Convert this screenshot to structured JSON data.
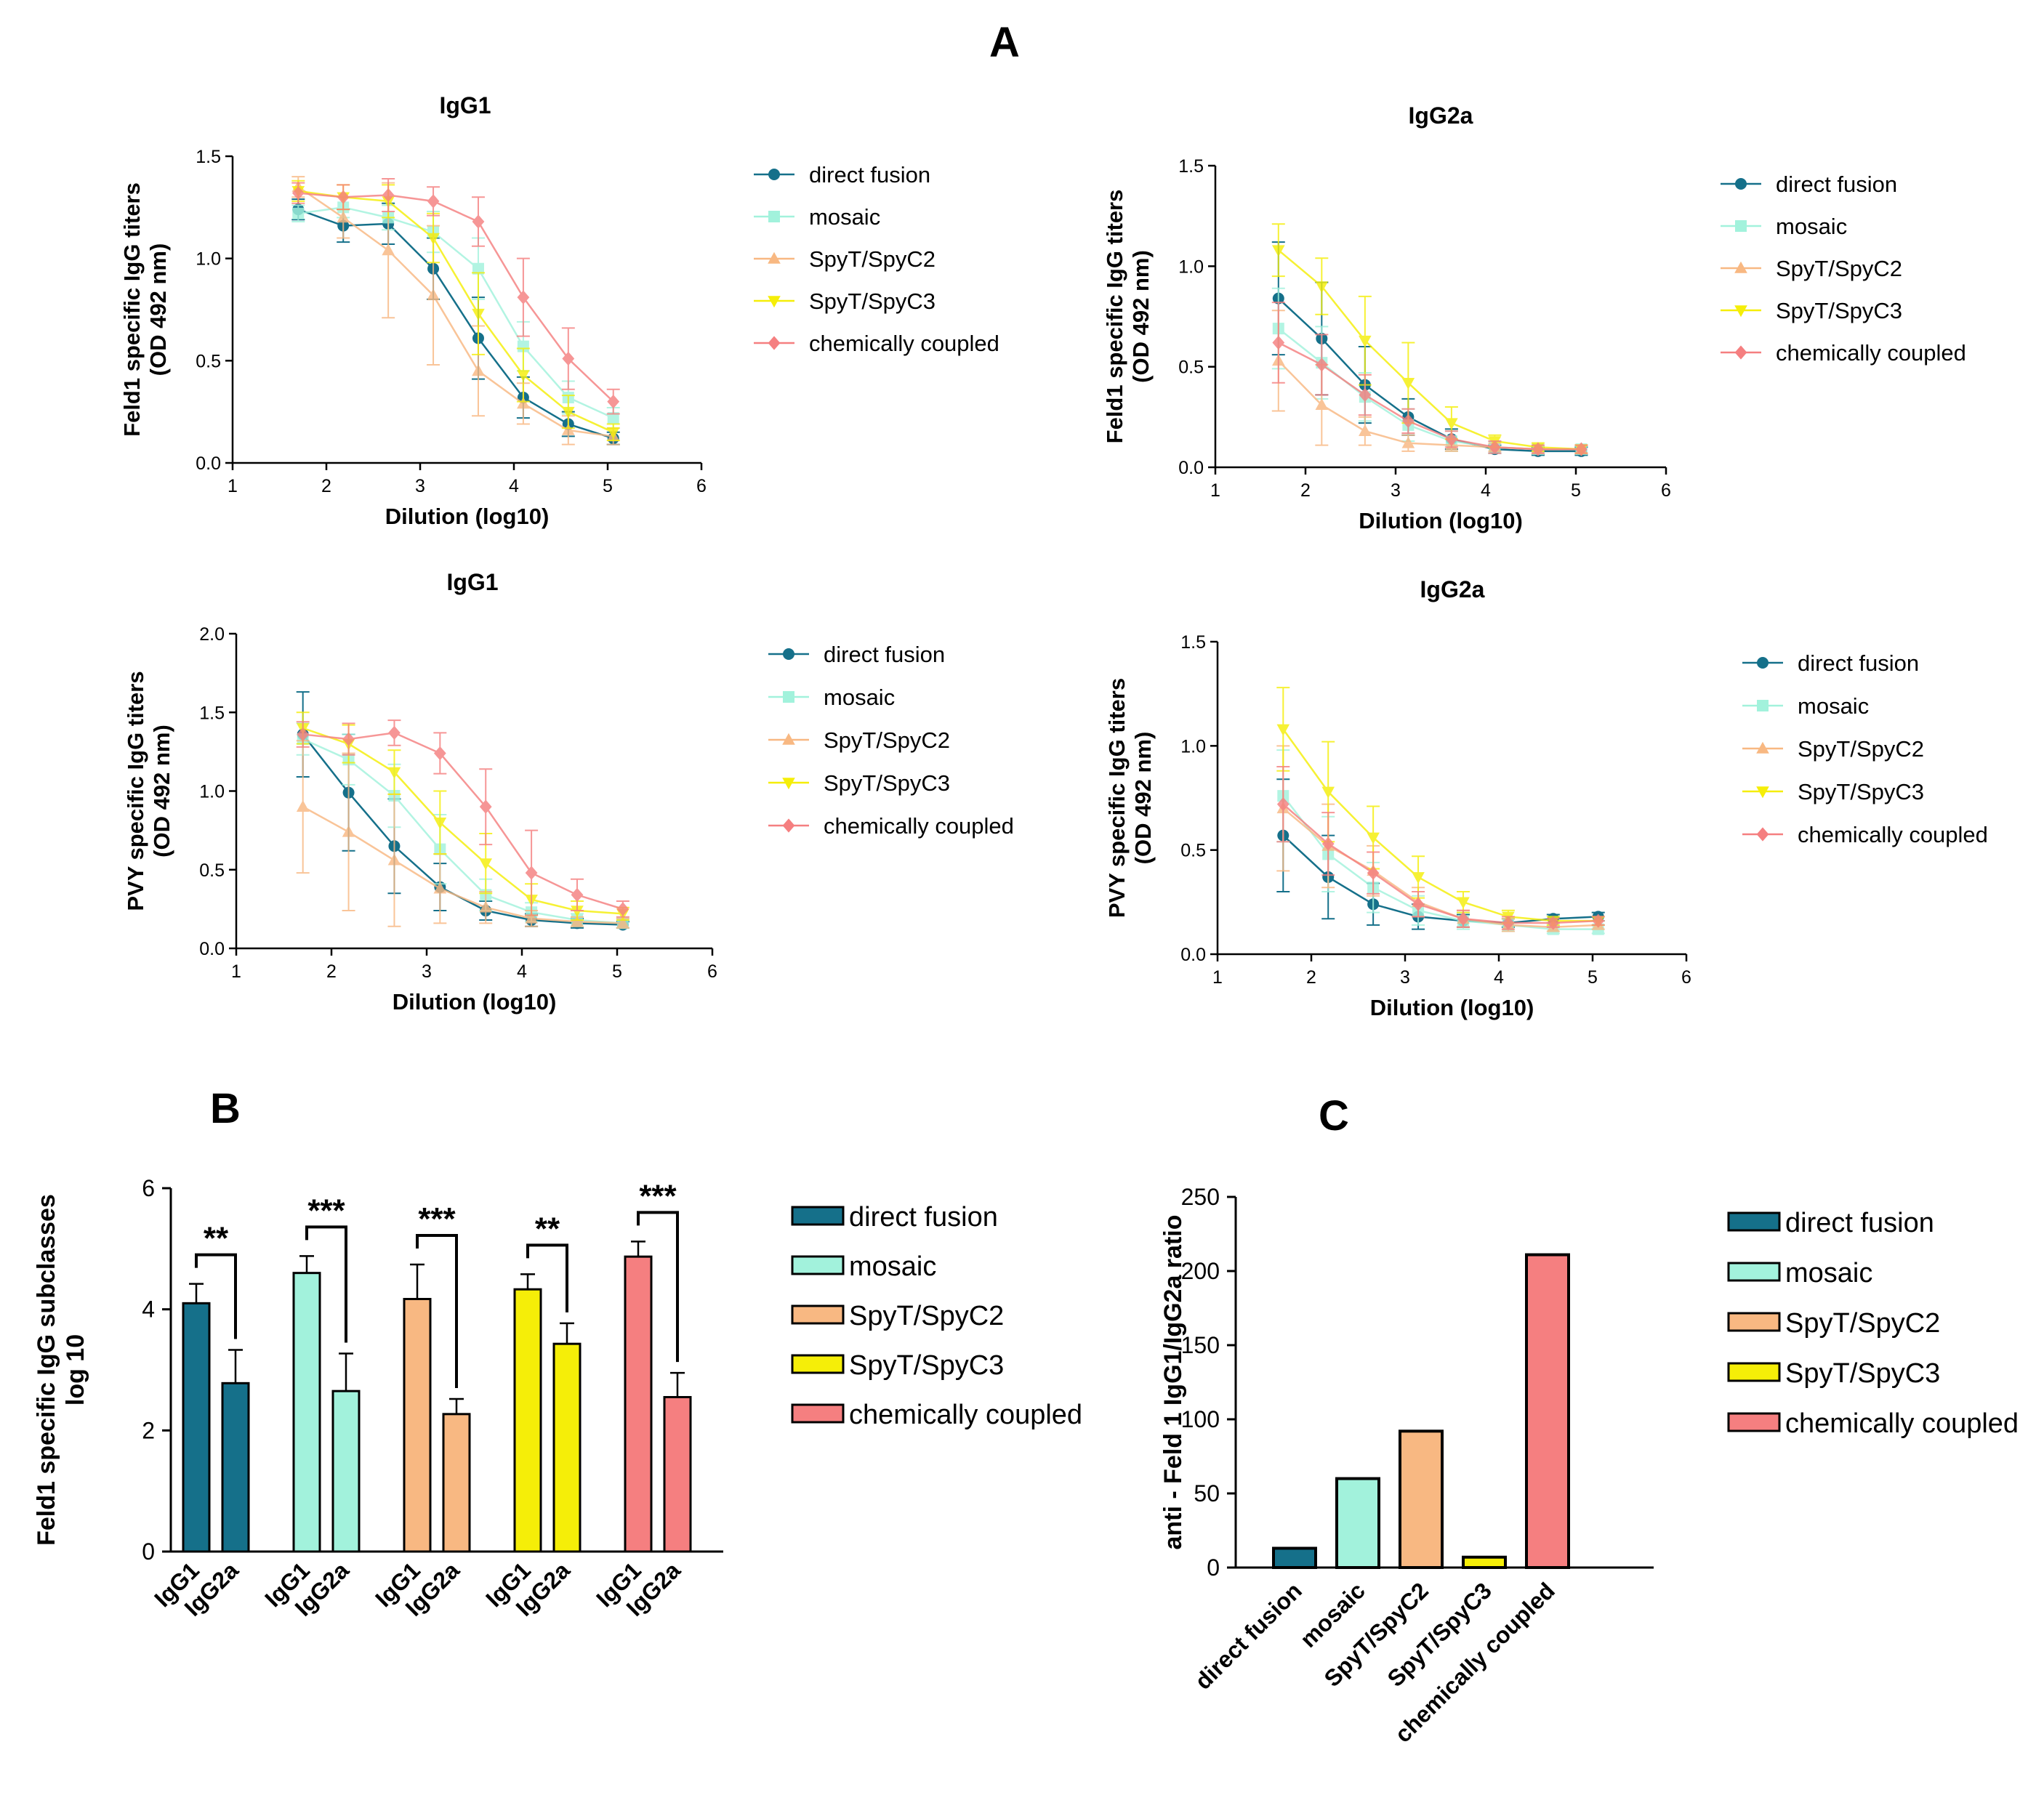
{
  "figure_label": "A",
  "colors": {
    "direct fusion": "#15708a",
    "mosaic": "#a2f2dc",
    "SpyT/SpyC2": "#f8b882",
    "SpyT/SpyC3": "#f5ee08",
    "chemically coupled": "#f57f80"
  },
  "chart_data": [
    {
      "id": "feld1-igg1",
      "type": "line",
      "title": "IgG1",
      "xlabel": "Dilution (log10)",
      "ylabel": [
        "Feld1 specific IgG titers",
        "(OD 492 nm)"
      ],
      "xlim": [
        1,
        6
      ],
      "ylim": [
        0,
        1.5
      ],
      "xticks": [
        1,
        2,
        3,
        4,
        5,
        6
      ],
      "yticks": [
        0.0,
        0.5,
        1.0,
        1.5
      ],
      "ytick_labels": [
        "0.0",
        "0.5",
        "1.0",
        "1.5"
      ],
      "x": [
        1.7,
        2.18,
        2.66,
        3.14,
        3.62,
        4.1,
        4.58,
        5.06
      ],
      "series": [
        {
          "name": "direct fusion",
          "marker": "circle",
          "values": [
            1.24,
            1.16,
            1.17,
            0.95,
            0.61,
            0.32,
            0.19,
            0.12
          ],
          "errors": [
            0.05,
            0.08,
            0.1,
            0.15,
            0.2,
            0.1,
            0.06,
            0.03
          ]
        },
        {
          "name": "mosaic",
          "marker": "square",
          "values": [
            1.22,
            1.25,
            1.2,
            1.13,
            0.95,
            0.57,
            0.32,
            0.22
          ],
          "errors": [
            0.04,
            0.05,
            0.06,
            0.1,
            0.15,
            0.12,
            0.08,
            0.05
          ]
        },
        {
          "name": "SpyT/SpyC2",
          "marker": "triangle-up",
          "values": [
            1.35,
            1.2,
            1.04,
            0.82,
            0.45,
            0.29,
            0.16,
            0.13
          ],
          "errors": [
            0.05,
            0.1,
            0.33,
            0.34,
            0.22,
            0.1,
            0.07,
            0.04
          ]
        },
        {
          "name": "SpyT/SpyC3",
          "marker": "triangle-down",
          "values": [
            1.33,
            1.3,
            1.28,
            1.1,
            0.73,
            0.43,
            0.25,
            0.15
          ],
          "errors": [
            0.05,
            0.06,
            0.08,
            0.12,
            0.2,
            0.13,
            0.08,
            0.04
          ]
        },
        {
          "name": "chemically coupled",
          "marker": "diamond",
          "values": [
            1.32,
            1.3,
            1.31,
            1.28,
            1.18,
            0.81,
            0.51,
            0.3
          ],
          "errors": [
            0.05,
            0.06,
            0.08,
            0.07,
            0.12,
            0.19,
            0.15,
            0.06
          ]
        }
      ]
    },
    {
      "id": "feld1-igg2a",
      "type": "line",
      "title": "IgG2a",
      "xlabel": "Dilution (log10)",
      "ylabel": [
        "Feld1 specific IgG titers",
        "(OD 492 nm)"
      ],
      "xlim": [
        1,
        6
      ],
      "ylim": [
        0,
        1.5
      ],
      "xticks": [
        1,
        2,
        3,
        4,
        5,
        6
      ],
      "yticks": [
        0.0,
        0.5,
        1.0,
        1.5
      ],
      "ytick_labels": [
        "0.0",
        "0.5",
        "1.0",
        "1.5"
      ],
      "x": [
        1.7,
        2.18,
        2.66,
        3.14,
        3.62,
        4.1,
        4.58,
        5.06
      ],
      "series": [
        {
          "name": "direct fusion",
          "marker": "circle",
          "values": [
            0.84,
            0.64,
            0.41,
            0.25,
            0.14,
            0.09,
            0.08,
            0.08
          ],
          "errors": [
            0.28,
            0.28,
            0.19,
            0.09,
            0.05,
            0.02,
            0.02,
            0.02
          ]
        },
        {
          "name": "mosaic",
          "marker": "square",
          "values": [
            0.69,
            0.52,
            0.35,
            0.21,
            0.13,
            0.1,
            0.09,
            0.09
          ],
          "errors": [
            0.2,
            0.18,
            0.12,
            0.08,
            0.05,
            0.03,
            0.02,
            0.02
          ]
        },
        {
          "name": "SpyT/SpyC2",
          "marker": "triangle-up",
          "values": [
            0.53,
            0.31,
            0.18,
            0.12,
            0.11,
            0.1,
            0.09,
            0.09
          ],
          "errors": [
            0.25,
            0.2,
            0.07,
            0.04,
            0.03,
            0.02,
            0.02,
            0.02
          ]
        },
        {
          "name": "SpyT/SpyC3",
          "marker": "triangle-down",
          "values": [
            1.08,
            0.9,
            0.63,
            0.42,
            0.22,
            0.13,
            0.1,
            0.09
          ],
          "errors": [
            0.13,
            0.14,
            0.22,
            0.2,
            0.08,
            0.03,
            0.02,
            0.02
          ]
        },
        {
          "name": "chemically coupled",
          "marker": "diamond",
          "values": [
            0.62,
            0.51,
            0.36,
            0.23,
            0.14,
            0.1,
            0.09,
            0.09
          ],
          "errors": [
            0.2,
            0.15,
            0.1,
            0.06,
            0.04,
            0.03,
            0.02,
            0.02
          ]
        }
      ]
    },
    {
      "id": "pvy-igg1",
      "type": "line",
      "title": "IgG1",
      "xlabel": "Dilution (log10)",
      "ylabel": [
        "PVY specific IgG titers",
        "(OD 492 nm)"
      ],
      "xlim": [
        1,
        6
      ],
      "ylim": [
        0,
        2.0
      ],
      "xticks": [
        1,
        2,
        3,
        4,
        5,
        6
      ],
      "yticks": [
        0.0,
        0.5,
        1.0,
        1.5,
        2.0
      ],
      "ytick_labels": [
        "0.0",
        "0.5",
        "1.0",
        "1.5",
        "2.0"
      ],
      "x": [
        1.7,
        2.18,
        2.66,
        3.14,
        3.62,
        4.1,
        4.58,
        5.06
      ],
      "series": [
        {
          "name": "direct fusion",
          "marker": "circle",
          "values": [
            1.36,
            0.99,
            0.65,
            0.39,
            0.24,
            0.18,
            0.16,
            0.15
          ],
          "errors": [
            0.27,
            0.37,
            0.3,
            0.15,
            0.06,
            0.04,
            0.03,
            0.02
          ]
        },
        {
          "name": "mosaic",
          "marker": "square",
          "values": [
            1.33,
            1.2,
            0.97,
            0.63,
            0.34,
            0.23,
            0.18,
            0.16
          ],
          "errors": [
            0.1,
            0.16,
            0.2,
            0.22,
            0.1,
            0.06,
            0.04,
            0.03
          ]
        },
        {
          "name": "SpyT/SpyC2",
          "marker": "triangle-up",
          "values": [
            0.9,
            0.74,
            0.56,
            0.38,
            0.26,
            0.19,
            0.17,
            0.16
          ],
          "errors": [
            0.42,
            0.5,
            0.42,
            0.22,
            0.1,
            0.05,
            0.03,
            0.03
          ]
        },
        {
          "name": "SpyT/SpyC3",
          "marker": "triangle-down",
          "values": [
            1.4,
            1.3,
            1.12,
            0.8,
            0.54,
            0.31,
            0.24,
            0.22
          ],
          "errors": [
            0.1,
            0.12,
            0.14,
            0.2,
            0.19,
            0.1,
            0.06,
            0.04
          ]
        },
        {
          "name": "chemically coupled",
          "marker": "diamond",
          "values": [
            1.36,
            1.33,
            1.37,
            1.24,
            0.9,
            0.48,
            0.34,
            0.25
          ],
          "errors": [
            0.08,
            0.1,
            0.08,
            0.13,
            0.24,
            0.27,
            0.1,
            0.05
          ]
        }
      ]
    },
    {
      "id": "pvy-igg2a",
      "type": "line",
      "title": "IgG2a",
      "xlabel": "Dilution (log10)",
      "ylabel": [
        "PVY specific IgG titers",
        "(OD 492 nm)"
      ],
      "xlim": [
        1,
        6
      ],
      "ylim": [
        0,
        1.5
      ],
      "xticks": [
        1,
        2,
        3,
        4,
        5,
        6
      ],
      "yticks": [
        0.0,
        0.5,
        1.0,
        1.5
      ],
      "ytick_labels": [
        "0.0",
        "0.5",
        "1.0",
        "1.5"
      ],
      "x": [
        1.7,
        2.18,
        2.66,
        3.14,
        3.62,
        4.1,
        4.58,
        5.06
      ],
      "series": [
        {
          "name": "direct fusion",
          "marker": "circle",
          "values": [
            0.57,
            0.37,
            0.24,
            0.18,
            0.16,
            0.15,
            0.17,
            0.18
          ],
          "errors": [
            0.27,
            0.2,
            0.1,
            0.06,
            0.03,
            0.02,
            0.02,
            0.02
          ]
        },
        {
          "name": "mosaic",
          "marker": "square",
          "values": [
            0.76,
            0.48,
            0.32,
            0.21,
            0.16,
            0.14,
            0.12,
            0.12
          ],
          "errors": [
            0.22,
            0.18,
            0.12,
            0.07,
            0.04,
            0.03,
            0.02,
            0.02
          ]
        },
        {
          "name": "SpyT/SpyC2",
          "marker": "triangle-up",
          "values": [
            0.7,
            0.52,
            0.4,
            0.25,
            0.17,
            0.14,
            0.13,
            0.14
          ],
          "errors": [
            0.3,
            0.2,
            0.12,
            0.07,
            0.04,
            0.03,
            0.02,
            0.02
          ]
        },
        {
          "name": "SpyT/SpyC3",
          "marker": "triangle-down",
          "values": [
            1.08,
            0.78,
            0.56,
            0.37,
            0.25,
            0.18,
            0.16,
            0.16
          ],
          "errors": [
            0.2,
            0.24,
            0.15,
            0.1,
            0.05,
            0.03,
            0.02,
            0.02
          ]
        },
        {
          "name": "chemically coupled",
          "marker": "diamond",
          "values": [
            0.72,
            0.53,
            0.39,
            0.24,
            0.17,
            0.15,
            0.15,
            0.16
          ],
          "errors": [
            0.18,
            0.15,
            0.1,
            0.06,
            0.04,
            0.03,
            0.02,
            0.02
          ]
        }
      ]
    },
    {
      "id": "panel-b",
      "type": "bar",
      "panel_label": "B",
      "ylabel": [
        "Feld1 specific IgG subclasses",
        "log 10"
      ],
      "ylim": [
        0,
        6
      ],
      "yticks": [
        0,
        2,
        4,
        6
      ],
      "groups": [
        "direct fusion",
        "mosaic",
        "SpyT/SpyC2",
        "SpyT/SpyC3",
        "chemically coupled"
      ],
      "categories": [
        "IgG1",
        "IgG2a"
      ],
      "series": [
        {
          "name": "direct fusion",
          "values": [
            4.1,
            2.78
          ],
          "errors": [
            0.32,
            0.55
          ],
          "significance": "**"
        },
        {
          "name": "mosaic",
          "values": [
            4.6,
            2.65
          ],
          "errors": [
            0.28,
            0.62
          ],
          "significance": "***"
        },
        {
          "name": "SpyT/SpyC2",
          "values": [
            4.17,
            2.27
          ],
          "errors": [
            0.57,
            0.25
          ],
          "significance": "***"
        },
        {
          "name": "SpyT/SpyC3",
          "values": [
            4.33,
            3.43
          ],
          "errors": [
            0.25,
            0.34
          ],
          "significance": "**"
        },
        {
          "name": "chemically coupled",
          "values": [
            4.87,
            2.55
          ],
          "errors": [
            0.25,
            0.4
          ],
          "significance": "***"
        }
      ]
    },
    {
      "id": "panel-c",
      "type": "bar",
      "panel_label": "C",
      "ylabel": [
        "anti - Feld 1 IgG1/IgG2a ratio"
      ],
      "ylim": [
        0,
        250
      ],
      "yticks": [
        0,
        50,
        100,
        150,
        200,
        250
      ],
      "categories": [
        "direct fusion",
        "mosaic",
        "SpyT/SpyC2",
        "SpyT/SpyC3",
        "chemically coupled"
      ],
      "values": [
        13,
        60,
        92,
        7,
        211
      ]
    }
  ]
}
